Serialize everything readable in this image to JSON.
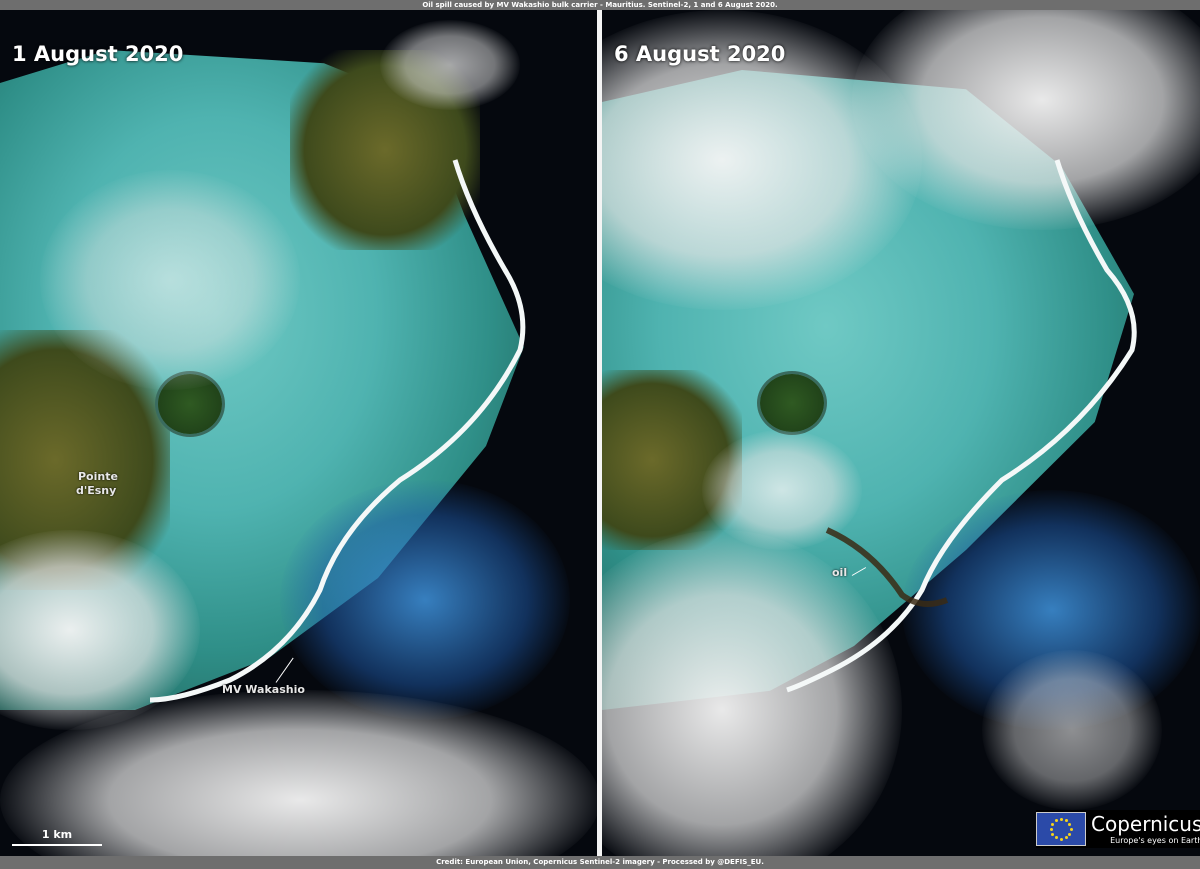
{
  "header": {
    "title": "Oil spill caused by MV Wakashio bulk carrier - Mauritius.  Sentinel-2,  1 and 6 August 2020."
  },
  "footer": {
    "credit": "Credit: European Union, Copernicus Sentinel-2 imagery - Processed by @DEFIS_EU."
  },
  "left_panel": {
    "date": "1 August 2020",
    "labels": {
      "place_line1": "Pointe",
      "place_line2": "d'Esny",
      "ship": "MV Wakashio"
    },
    "scale_bar": "1 km"
  },
  "right_panel": {
    "date": "6 August 2020",
    "labels": {
      "oil": "oil"
    }
  },
  "logos": {
    "eu": "European Union flag",
    "copernicus": "Copernicus",
    "tagline": "Europe's eyes on Earth"
  },
  "colors": {
    "lagoon": "#4fb3b0",
    "ocean": "#05080e",
    "cloud": "#f0f0f0",
    "bar": "#6e6e6e"
  }
}
